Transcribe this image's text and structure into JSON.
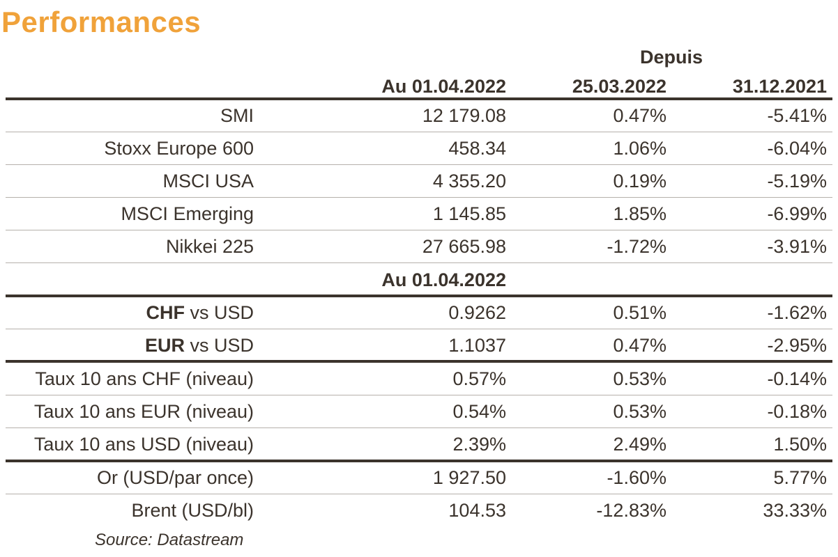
{
  "title": "Performances",
  "header": {
    "group": "Depuis",
    "col1": "Au 01.04.2022",
    "col2": "25.03.2022",
    "col3": "31.12.2021"
  },
  "indices": [
    {
      "name": "SMI",
      "level": "12 179.08",
      "wtd": "0.47%",
      "ytd": "-5.41%"
    },
    {
      "name": "Stoxx Europe 600",
      "level": "458.34",
      "wtd": "1.06%",
      "ytd": "-6.04%"
    },
    {
      "name": "MSCI USA",
      "level": "4 355.20",
      "wtd": "0.19%",
      "ytd": "-5.19%"
    },
    {
      "name": "MSCI Emerging",
      "level": "1 145.85",
      "wtd": "1.85%",
      "ytd": "-6.99%"
    },
    {
      "name": "Nikkei 225",
      "level": "27 665.98",
      "wtd": "-1.72%",
      "ytd": "-3.91%"
    }
  ],
  "subheader": "Au 01.04.2022",
  "fx": [
    {
      "bold": "CHF",
      "rest": " vs USD",
      "level": "0.9262",
      "wtd": "0.51%",
      "ytd": "-1.62%"
    },
    {
      "bold": "EUR",
      "rest": " vs USD",
      "level": "1.1037",
      "wtd": "0.47%",
      "ytd": "-2.95%"
    }
  ],
  "rates": [
    {
      "name": "Taux 10 ans CHF (niveau)",
      "level": "0.57%",
      "wtd": "0.53%",
      "ytd": "-0.14%"
    },
    {
      "name": "Taux 10 ans EUR (niveau)",
      "level": "0.54%",
      "wtd": "0.53%",
      "ytd": "-0.18%"
    },
    {
      "name": "Taux 10 ans USD (niveau)",
      "level": "2.39%",
      "wtd": "2.49%",
      "ytd": "1.50%"
    }
  ],
  "commodities": [
    {
      "name": "Or (USD/par once)",
      "level": "1 927.50",
      "wtd": "-1.60%",
      "ytd": "5.77%"
    },
    {
      "name": "Brent (USD/bl)",
      "level": "104.53",
      "wtd": "-12.83%",
      "ytd": "33.33%"
    }
  ],
  "source": "Source: Datastream"
}
